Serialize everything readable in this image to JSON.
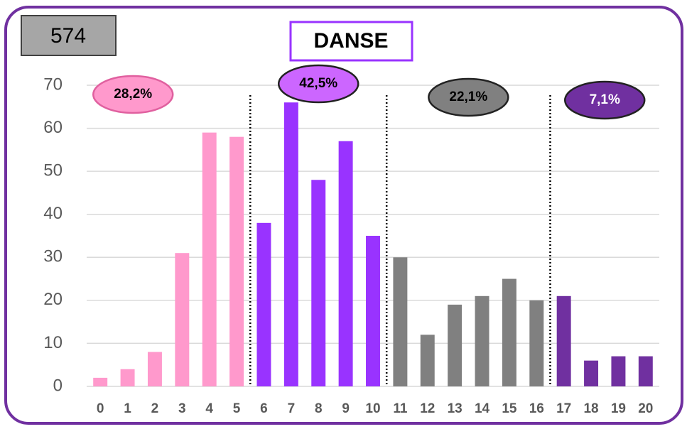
{
  "chart_data": {
    "type": "bar",
    "title": "DANSE",
    "total_label": "574",
    "categories": [
      "0",
      "1",
      "2",
      "3",
      "4",
      "5",
      "6",
      "7",
      "8",
      "9",
      "10",
      "11",
      "12",
      "13",
      "14",
      "15",
      "16",
      "17",
      "18",
      "19",
      "20"
    ],
    "values": [
      2,
      4,
      8,
      31,
      59,
      58,
      38,
      66,
      48,
      57,
      35,
      30,
      12,
      19,
      21,
      25,
      20,
      21,
      6,
      7,
      7
    ],
    "colors": [
      "#ff99cc",
      "#ff99cc",
      "#ff99cc",
      "#ff99cc",
      "#ff99cc",
      "#ff99cc",
      "#9933ff",
      "#9933ff",
      "#9933ff",
      "#9933ff",
      "#9933ff",
      "#808080",
      "#808080",
      "#808080",
      "#808080",
      "#808080",
      "#808080",
      "#7030a0",
      "#7030a0",
      "#7030a0",
      "#7030a0"
    ],
    "annotations": [
      {
        "text": "28,2%",
        "color": "#ff99cc",
        "text_color": "#000000"
      },
      {
        "text": "42,5%",
        "color": "#cc66ff",
        "text_color": "#000000"
      },
      {
        "text": "22,1%",
        "color": "#808080",
        "text_color": "#000000"
      },
      {
        "text": "7,1%",
        "color": "#7030a0",
        "text_color": "#ffffff"
      }
    ],
    "ylim": [
      0,
      70
    ],
    "yticks": [
      0,
      10,
      20,
      30,
      40,
      50,
      60,
      70
    ],
    "grid": true
  }
}
